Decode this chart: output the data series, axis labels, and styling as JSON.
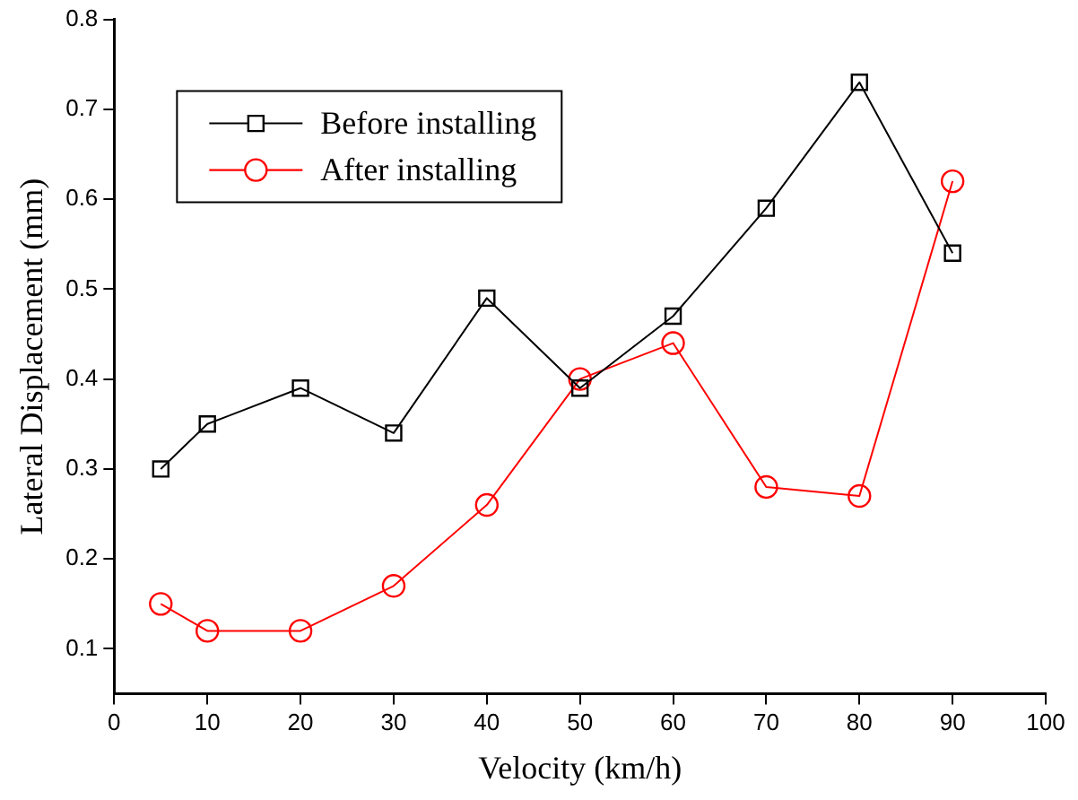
{
  "chart_data": {
    "type": "line",
    "xlabel": "Velocity (km/h)",
    "ylabel": "Lateral Displacement (mm)",
    "x": [
      5,
      10,
      20,
      30,
      40,
      50,
      60,
      70,
      80,
      90
    ],
    "series": [
      {
        "name": "Before installing",
        "color": "#000000",
        "marker": "square",
        "values": [
          0.3,
          0.35,
          0.39,
          0.34,
          0.49,
          0.39,
          0.47,
          0.59,
          0.73,
          0.54
        ]
      },
      {
        "name": "After installing",
        "color": "#ff0000",
        "marker": "circle",
        "values": [
          0.15,
          0.12,
          0.12,
          0.17,
          0.26,
          0.4,
          0.44,
          0.28,
          0.27,
          0.62
        ]
      }
    ],
    "xlim": [
      0,
      100
    ],
    "xticks": [
      0,
      10,
      20,
      30,
      40,
      50,
      60,
      70,
      80,
      90,
      100
    ],
    "ylim": [
      0.05,
      0.8
    ],
    "yticks": [
      0.1,
      0.2,
      0.3,
      0.4,
      0.5,
      0.6,
      0.7,
      0.8
    ],
    "grid": false,
    "legend": "top left",
    "line_style": "solid"
  }
}
